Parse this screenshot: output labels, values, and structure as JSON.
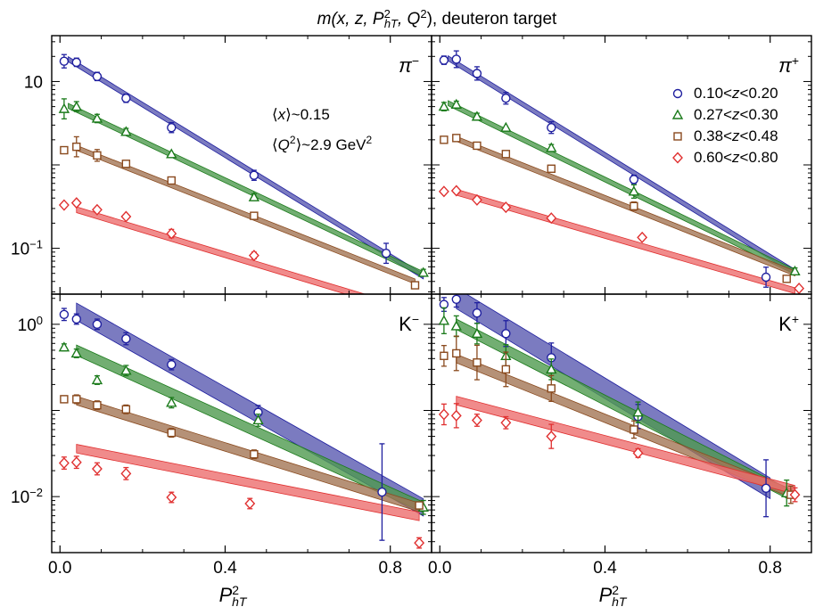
{
  "figure": {
    "title_math": "m(x, z, P",
    "title_sup": "2",
    "title_sub": "hT",
    "title_rest": ", Q",
    "title_sup2": "2",
    "title_end": "), deuteron target"
  },
  "chart_data": [
    {
      "type": "scatter",
      "panel": "top-left",
      "particle_label": "π",
      "particle_sup": "−",
      "annotations": [
        {
          "prefix": "⟨",
          "var": "x",
          "suffix": "⟩~0.15"
        },
        {
          "prefix": "⟨",
          "var": "Q",
          "sup": "2",
          "suffix": "⟩~2.9 GeV",
          "suffix_sup": "2"
        }
      ],
      "xlim": [
        -0.02,
        0.9
      ],
      "ylim_log10": [
        -1.55,
        1.55
      ],
      "series": [
        {
          "name": "0.10<z<0.20",
          "color": "#1f1f9f",
          "fill": "#5a5ab0",
          "marker": "circle",
          "x": [
            0.01,
            0.04,
            0.09,
            0.16,
            0.27,
            0.47,
            0.79
          ],
          "y": [
            17.5,
            17.0,
            11.5,
            6.3,
            2.8,
            0.75,
            0.087
          ],
          "yerr": [
            0.08,
            0.05,
            0.05,
            0.05,
            0.06,
            0.06,
            0.12
          ],
          "band": {
            "x0": 0.02,
            "y0": 18.5,
            "x1": 0.88,
            "y1": 0.046,
            "w": 0.06
          }
        },
        {
          "name": "0.27<z<0.30",
          "color": "#1a7a1a",
          "fill": "#4f9a4f",
          "marker": "triangle",
          "x": [
            0.01,
            0.04,
            0.09,
            0.16,
            0.27,
            0.47,
            0.88
          ],
          "y": [
            4.7,
            5.0,
            3.6,
            2.5,
            1.35,
            0.41,
            0.051
          ],
          "yerr": [
            0.12,
            0.06,
            0.05,
            0.04,
            0.03,
            0.04,
            0.04
          ],
          "band": {
            "x0": 0.02,
            "y0": 5.1,
            "x1": 0.88,
            "y1": 0.049,
            "w": 0.06
          }
        },
        {
          "name": "0.38<z<0.48",
          "color": "#8a4a1e",
          "fill": "#a37555",
          "marker": "square",
          "x": [
            0.01,
            0.04,
            0.09,
            0.16,
            0.27,
            0.47,
            0.86
          ],
          "y": [
            1.5,
            1.65,
            1.3,
            1.03,
            0.65,
            0.245,
            0.036
          ],
          "yerr": [
            0.04,
            0.12,
            0.07,
            0.04,
            0.04,
            0.03,
            0.03
          ],
          "band": {
            "x0": 0.04,
            "y0": 1.6,
            "x1": 0.86,
            "y1": 0.04,
            "w": 0.06
          }
        },
        {
          "name": "0.60<z<0.80",
          "color": "#e03030",
          "fill": "#ec6e6e",
          "marker": "diamond",
          "x": [
            0.01,
            0.04,
            0.09,
            0.16,
            0.27,
            0.47,
            0.87
          ],
          "y": [
            0.33,
            0.35,
            0.29,
            0.24,
            0.15,
            0.082,
            0.017
          ],
          "yerr": [
            0.02,
            0.02,
            0.02,
            0.03,
            0.05,
            0.04,
            0.05
          ],
          "band": {
            "x0": 0.04,
            "y0": 0.29,
            "x1": 0.87,
            "y1": 0.0165,
            "w": 0.07
          }
        }
      ]
    },
    {
      "type": "scatter",
      "panel": "top-right",
      "particle_label": "π",
      "particle_sup": "+",
      "xlim": [
        -0.02,
        0.9
      ],
      "ylim_log10": [
        -1.55,
        1.55
      ],
      "series": [
        {
          "name": "0.10<z<0.20",
          "color": "#1f1f9f",
          "fill": "#5a5ab0",
          "marker": "circle",
          "x": [
            0.01,
            0.04,
            0.09,
            0.16,
            0.27,
            0.47,
            0.79
          ],
          "y": [
            18.0,
            18.5,
            12.5,
            6.3,
            2.8,
            0.67,
            0.045
          ],
          "yerr": [
            0.05,
            0.1,
            0.08,
            0.07,
            0.07,
            0.05,
            0.12
          ],
          "band": {
            "x0": 0.02,
            "y0": 19.0,
            "x1": 0.86,
            "y1": 0.052,
            "w": 0.06
          }
        },
        {
          "name": "0.27<z<0.30",
          "color": "#1a7a1a",
          "fill": "#4f9a4f",
          "marker": "triangle",
          "x": [
            0.01,
            0.04,
            0.09,
            0.16,
            0.27,
            0.47,
            0.86
          ],
          "y": [
            5.0,
            5.3,
            3.8,
            2.8,
            1.6,
            0.48,
            0.053
          ],
          "yerr": [
            0.05,
            0.04,
            0.04,
            0.03,
            0.04,
            0.08,
            0.04
          ],
          "band": {
            "x0": 0.02,
            "y0": 5.5,
            "x1": 0.86,
            "y1": 0.052,
            "w": 0.06
          }
        },
        {
          "name": "0.38<z<0.48",
          "color": "#8a4a1e",
          "fill": "#a37555",
          "marker": "square",
          "x": [
            0.01,
            0.04,
            0.09,
            0.16,
            0.27,
            0.47,
            0.84
          ],
          "y": [
            2.0,
            2.1,
            1.7,
            1.35,
            0.9,
            0.32,
            0.043
          ],
          "yerr": [
            0.03,
            0.03,
            0.03,
            0.03,
            0.03,
            0.05,
            0.03
          ],
          "band": {
            "x0": 0.04,
            "y0": 2.05,
            "x1": 0.86,
            "y1": 0.05,
            "w": 0.06
          }
        },
        {
          "name": "0.60<z<0.80",
          "color": "#e03030",
          "fill": "#ec6e6e",
          "marker": "diamond",
          "x": [
            0.01,
            0.04,
            0.09,
            0.16,
            0.27,
            0.49,
            0.87
          ],
          "y": [
            0.48,
            0.49,
            0.38,
            0.31,
            0.23,
            0.135,
            0.033
          ],
          "yerr": [
            0.02,
            0.02,
            0.02,
            0.02,
            0.02,
            0.02,
            0.02
          ],
          "band": {
            "x0": 0.04,
            "y0": 0.47,
            "x1": 0.86,
            "y1": 0.031,
            "w": 0.07
          }
        }
      ],
      "legend": {
        "placement": "top-right"
      }
    },
    {
      "type": "scatter",
      "panel": "bottom-left",
      "particle_label": "K",
      "particle_sup": "−",
      "xlim": [
        -0.02,
        0.9
      ],
      "ylim_log10": [
        -2.65,
        0.35
      ],
      "series": [
        {
          "name": "0.10<z<0.20",
          "color": "#1f1f9f",
          "fill": "#5a5ab0",
          "marker": "circle",
          "x": [
            0.01,
            0.04,
            0.09,
            0.16,
            0.27,
            0.48,
            0.78
          ],
          "y": [
            1.3,
            1.15,
            1.0,
            0.68,
            0.34,
            0.095,
            0.0113
          ],
          "yerr": [
            0.07,
            0.06,
            0.06,
            0.07,
            0.06,
            0.08,
            0.56
          ],
          "band": {
            "x0": 0.04,
            "y0": 1.4,
            "x1": 0.88,
            "y1": 0.0075,
            "w": 0.2
          }
        },
        {
          "name": "0.27<z<0.30",
          "color": "#1a7a1a",
          "fill": "#4f9a4f",
          "marker": "triangle",
          "x": [
            0.01,
            0.04,
            0.09,
            0.16,
            0.27,
            0.48,
            0.88
          ],
          "y": [
            0.54,
            0.46,
            0.225,
            0.29,
            0.123,
            0.077,
            0.0075
          ],
          "yerr": [
            0.04,
            0.05,
            0.05,
            0.06,
            0.06,
            0.07,
            0.08
          ],
          "band": {
            "x0": 0.04,
            "y0": 0.5,
            "x1": 0.88,
            "y1": 0.0075,
            "w": 0.12
          }
        },
        {
          "name": "0.38<z<0.48",
          "color": "#8a4a1e",
          "fill": "#a37555",
          "marker": "square",
          "x": [
            0.01,
            0.04,
            0.09,
            0.16,
            0.27,
            0.47,
            0.87
          ],
          "y": [
            0.135,
            0.135,
            0.115,
            0.103,
            0.055,
            0.031,
            0.0079
          ],
          "yerr": [
            0.04,
            0.05,
            0.05,
            0.05,
            0.05,
            0.05,
            0.04
          ],
          "band": {
            "x0": 0.04,
            "y0": 0.13,
            "x1": 0.87,
            "y1": 0.0075,
            "w": 0.1
          }
        },
        {
          "name": "0.60<z<0.80",
          "color": "#e03030",
          "fill": "#ec6e6e",
          "marker": "diamond",
          "x": [
            0.01,
            0.04,
            0.09,
            0.16,
            0.27,
            0.46,
            0.87
          ],
          "y": [
            0.0245,
            0.025,
            0.021,
            0.0185,
            0.0098,
            0.0083,
            0.0029
          ],
          "yerr": [
            0.07,
            0.07,
            0.07,
            0.07,
            0.06,
            0.06,
            0.06
          ],
          "band": {
            "x0": 0.04,
            "y0": 0.036,
            "x1": 0.87,
            "y1": 0.0059,
            "w": 0.1
          }
        }
      ]
    },
    {
      "type": "scatter",
      "panel": "bottom-right",
      "particle_label": "K",
      "particle_sup": "+",
      "xlim": [
        -0.02,
        0.9
      ],
      "ylim_log10": [
        -2.65,
        0.35
      ],
      "series": [
        {
          "name": "0.10<z<0.20",
          "color": "#1f1f9f",
          "fill": "#5a5ab0",
          "marker": "circle",
          "x": [
            0.01,
            0.04,
            0.09,
            0.16,
            0.27,
            0.48,
            0.79
          ],
          "y": [
            1.7,
            1.95,
            1.35,
            0.78,
            0.41,
            0.085,
            0.0125
          ],
          "yerr": [
            0.08,
            0.09,
            0.12,
            0.15,
            0.17,
            0.14,
            0.33
          ],
          "band": {
            "x0": 0.04,
            "y0": 2.0,
            "x1": 0.8,
            "y1": 0.0125,
            "w": 0.24
          }
        },
        {
          "name": "0.27<z<0.30",
          "color": "#1a7a1a",
          "fill": "#4f9a4f",
          "marker": "triangle",
          "x": [
            0.01,
            0.04,
            0.09,
            0.16,
            0.27,
            0.48,
            0.84
          ],
          "y": [
            1.1,
            0.95,
            0.78,
            0.43,
            0.3,
            0.095,
            0.011
          ],
          "yerr": [
            0.15,
            0.12,
            0.12,
            0.13,
            0.12,
            0.12,
            0.15
          ],
          "band": {
            "x0": 0.04,
            "y0": 1.0,
            "x1": 0.84,
            "y1": 0.011,
            "w": 0.12
          }
        },
        {
          "name": "0.38<z<0.48",
          "color": "#8a4a1e",
          "fill": "#a37555",
          "marker": "square",
          "x": [
            0.01,
            0.04,
            0.09,
            0.16,
            0.27,
            0.47,
            0.85
          ],
          "y": [
            0.43,
            0.46,
            0.36,
            0.3,
            0.18,
            0.06,
            0.0105
          ],
          "yerr": [
            0.12,
            0.2,
            0.2,
            0.2,
            0.15,
            0.1,
            0.1
          ],
          "band": {
            "x0": 0.04,
            "y0": 0.4,
            "x1": 0.86,
            "y1": 0.0105,
            "w": 0.1
          }
        },
        {
          "name": "0.60<z<0.80",
          "color": "#e03030",
          "fill": "#ec6e6e",
          "marker": "diamond",
          "x": [
            0.01,
            0.04,
            0.09,
            0.16,
            0.27,
            0.48,
            0.86
          ],
          "y": [
            0.09,
            0.087,
            0.077,
            0.072,
            0.05,
            0.032,
            0.0105
          ],
          "yerr": [
            0.12,
            0.14,
            0.07,
            0.07,
            0.14,
            0.05,
            0.08
          ],
          "band": {
            "x0": 0.04,
            "y0": 0.13,
            "x1": 0.86,
            "y1": 0.012,
            "w": 0.1
          }
        }
      ]
    }
  ],
  "axes": {
    "x_ticks": [
      "0.0",
      "0.4",
      "0.8"
    ],
    "x_tick_values": [
      0.0,
      0.4,
      0.8
    ],
    "x_label_main": "P",
    "x_label_sup": "2",
    "x_label_sub": "hT",
    "y_top_ticks": [
      {
        "base": "10",
        "exp": "",
        "value": 1
      },
      {
        "base": "10",
        "exp": "−1",
        "value": -1
      }
    ],
    "y_bottom_ticks": [
      {
        "base": "10",
        "exp": "0",
        "value": 0
      },
      {
        "base": "10",
        "exp": "−2",
        "value": -2
      }
    ]
  },
  "legend": {
    "entries": [
      "0.10<z<0.20",
      "0.27<z<0.30",
      "0.38<z<0.48",
      "0.60<z<0.80"
    ]
  }
}
